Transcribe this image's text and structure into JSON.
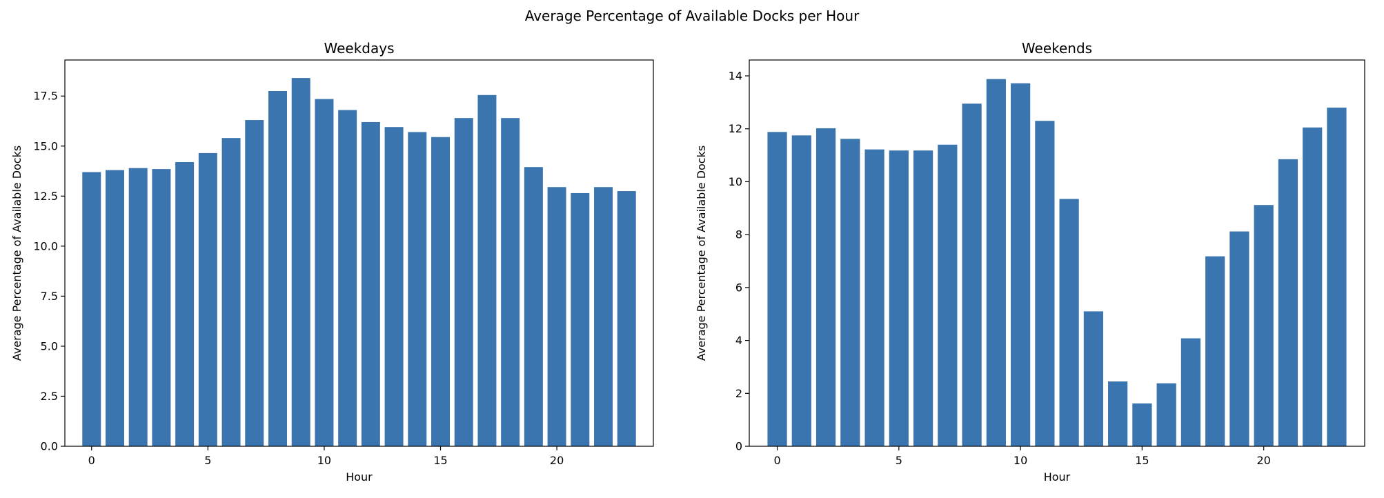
{
  "figure": {
    "suptitle": "Average Percentage of Available Docks per Hour"
  },
  "chart_data": [
    {
      "type": "bar",
      "title": "Weekdays",
      "xlabel": "Hour",
      "ylabel": "Average Percentage of Available Docks",
      "x": [
        0,
        1,
        2,
        3,
        4,
        5,
        6,
        7,
        8,
        9,
        10,
        11,
        12,
        13,
        14,
        15,
        16,
        17,
        18,
        19,
        20,
        21,
        22,
        23
      ],
      "values": [
        13.7,
        13.8,
        13.9,
        13.85,
        14.2,
        14.65,
        15.4,
        16.3,
        17.75,
        18.4,
        17.35,
        16.8,
        16.2,
        15.95,
        15.7,
        15.45,
        16.4,
        17.55,
        16.4,
        13.95,
        12.95,
        12.65,
        12.95,
        12.75
      ],
      "xlim": [
        -1.15,
        24.15
      ],
      "ylim": [
        0,
        19.3
      ],
      "xticks": [
        0,
        5,
        10,
        15,
        20
      ],
      "xtick_labels": [
        "0",
        "5",
        "10",
        "15",
        "20"
      ],
      "yticks": [
        0,
        2.5,
        5,
        7.5,
        10,
        12.5,
        15,
        17.5
      ],
      "ytick_labels": [
        "0.0",
        "2.5",
        "5.0",
        "7.5",
        "10.0",
        "12.5",
        "15.0",
        "17.5"
      ],
      "bar_color": "#3a75af",
      "grid": false
    },
    {
      "type": "bar",
      "title": "Weekends",
      "xlabel": "Hour",
      "ylabel": "Average Percentage of Available Docks",
      "x": [
        0,
        1,
        2,
        3,
        4,
        5,
        6,
        7,
        8,
        9,
        10,
        11,
        12,
        13,
        14,
        15,
        16,
        17,
        18,
        19,
        20,
        21,
        22,
        23
      ],
      "values": [
        11.88,
        11.75,
        12.02,
        11.62,
        11.22,
        11.18,
        11.18,
        11.4,
        12.95,
        13.88,
        13.72,
        12.3,
        9.35,
        5.1,
        2.45,
        1.62,
        2.38,
        4.08,
        7.18,
        8.12,
        9.12,
        10.85,
        12.05,
        12.8
      ],
      "xlim": [
        -1.15,
        24.15
      ],
      "ylim": [
        0,
        14.6
      ],
      "xticks": [
        0,
        5,
        10,
        15,
        20
      ],
      "xtick_labels": [
        "0",
        "5",
        "10",
        "15",
        "20"
      ],
      "yticks": [
        0,
        2,
        4,
        6,
        8,
        10,
        12,
        14
      ],
      "ytick_labels": [
        "0",
        "2",
        "4",
        "6",
        "8",
        "10",
        "12",
        "14"
      ],
      "bar_color": "#3a75af",
      "grid": false
    }
  ]
}
